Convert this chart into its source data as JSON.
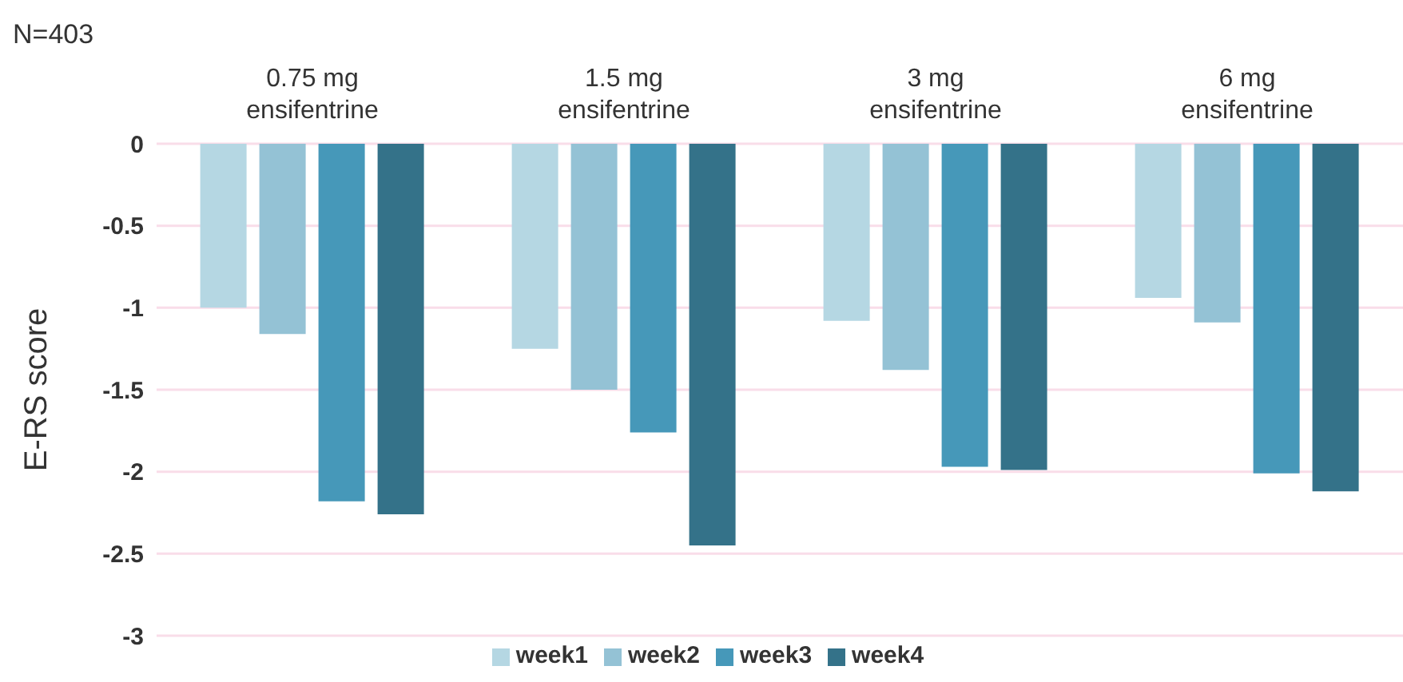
{
  "chart_data": {
    "type": "bar",
    "title": "N=403",
    "ylabel": "E-RS score",
    "categories": [
      "0.75 mg\nensifentrine",
      "1.5 mg\nensifentrine",
      "3 mg\nensifentrine",
      "6 mg\nensifentrine"
    ],
    "series": [
      {
        "name": "week1",
        "color": "#b5d7e3",
        "values": [
          -1.0,
          -1.25,
          -1.08,
          -0.94
        ]
      },
      {
        "name": "week2",
        "color": "#94c2d5",
        "values": [
          -1.16,
          -1.5,
          -1.38,
          -1.09
        ]
      },
      {
        "name": "week3",
        "color": "#4698b9",
        "values": [
          -2.18,
          -1.76,
          -1.97,
          -2.01
        ]
      },
      {
        "name": "week4",
        "color": "#347289",
        "values": [
          -2.26,
          -2.45,
          -1.99,
          -2.12
        ]
      }
    ],
    "ylim": [
      -3,
      0
    ],
    "yticks": [
      -3,
      -2.5,
      -2,
      -1.5,
      -1,
      -0.5,
      0
    ],
    "grid": "y",
    "legend": "bottom"
  }
}
